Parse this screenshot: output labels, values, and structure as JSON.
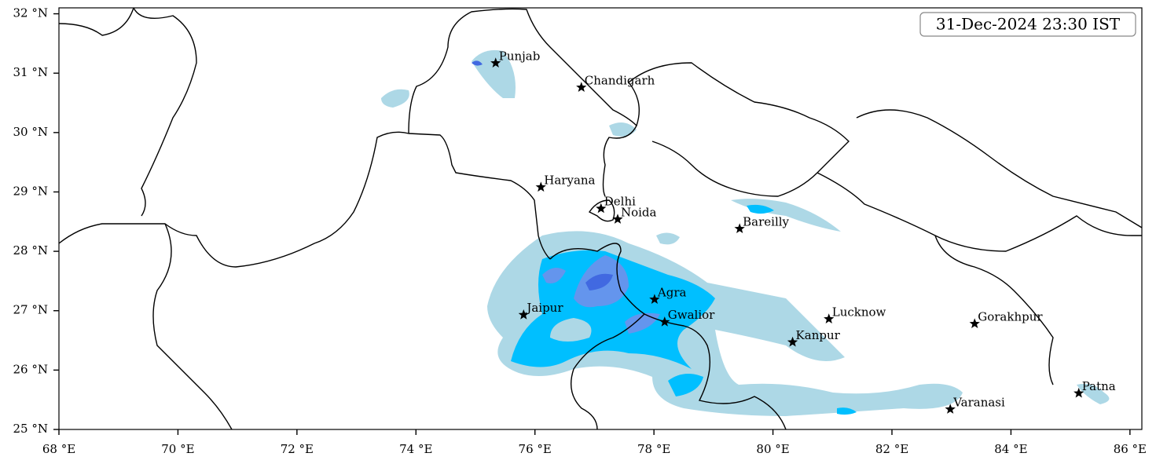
{
  "chart_data": {
    "type": "map",
    "title": "31-Dec-2024 23:30 IST",
    "xlim": [
      68,
      86.2
    ],
    "ylim": [
      25,
      32.1
    ],
    "xticks": [
      {
        "value": 68,
        "label": "68 °E"
      },
      {
        "value": 70,
        "label": "70 °E"
      },
      {
        "value": 72,
        "label": "72 °E"
      },
      {
        "value": 74,
        "label": "74 °E"
      },
      {
        "value": 76,
        "label": "76 °E"
      },
      {
        "value": 78,
        "label": "78 °E"
      },
      {
        "value": 80,
        "label": "80 °E"
      },
      {
        "value": 82,
        "label": "82 °E"
      },
      {
        "value": 84,
        "label": "84 °E"
      },
      {
        "value": 86,
        "label": "86 °E"
      }
    ],
    "yticks": [
      {
        "value": 25,
        "label": "25 °N"
      },
      {
        "value": 26,
        "label": "26 °N"
      },
      {
        "value": 27,
        "label": "27 °N"
      },
      {
        "value": 28,
        "label": "28 °N"
      },
      {
        "value": 29,
        "label": "29 °N"
      },
      {
        "value": 30,
        "label": "30 °N"
      },
      {
        "value": 31,
        "label": "31 °N"
      },
      {
        "value": 32,
        "label": "32 °N"
      }
    ],
    "cities": [
      {
        "name": "Punjab",
        "lon": 75.34,
        "lat": 31.17
      },
      {
        "name": "Chandigarh",
        "lon": 76.78,
        "lat": 30.76
      },
      {
        "name": "Haryana",
        "lon": 76.1,
        "lat": 29.08
      },
      {
        "name": "Delhi",
        "lon": 77.11,
        "lat": 28.72
      },
      {
        "name": "Noida",
        "lon": 77.39,
        "lat": 28.54
      },
      {
        "name": "Bareilly",
        "lon": 79.44,
        "lat": 28.38
      },
      {
        "name": "Agra",
        "lon": 78.01,
        "lat": 27.19
      },
      {
        "name": "Jaipur",
        "lon": 75.81,
        "lat": 26.93
      },
      {
        "name": "Gwalior",
        "lon": 78.18,
        "lat": 26.81
      },
      {
        "name": "Lucknow",
        "lon": 80.94,
        "lat": 26.86
      },
      {
        "name": "Kanpur",
        "lon": 80.33,
        "lat": 26.47
      },
      {
        "name": "Gorakhpur",
        "lon": 83.39,
        "lat": 26.78
      },
      {
        "name": "Patna",
        "lon": 85.14,
        "lat": 25.61
      },
      {
        "name": "Varanasi",
        "lon": 82.98,
        "lat": 25.34
      }
    ]
  }
}
